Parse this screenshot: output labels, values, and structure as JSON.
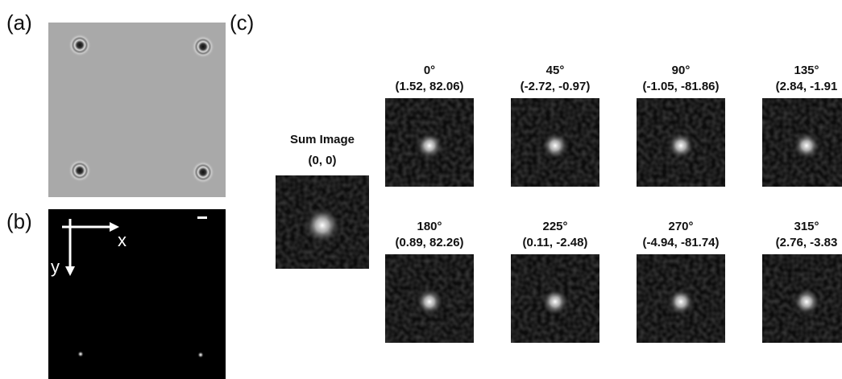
{
  "panels": {
    "a": {
      "label": "(a)"
    },
    "b": {
      "label": "(b)",
      "x_axis": "x",
      "y_axis": "y"
    },
    "c": {
      "label": "(c)",
      "sum": {
        "title": "Sum Image",
        "coords": "(0, 0)"
      },
      "tiles": [
        {
          "angle": "0°",
          "coords": "(1.52, 82.06)"
        },
        {
          "angle": "45°",
          "coords": "(-2.72, -0.97)"
        },
        {
          "angle": "90°",
          "coords": "(-1.05, -81.86)"
        },
        {
          "angle": "135°",
          "coords": "(2.84, -1.91"
        },
        {
          "angle": "180°",
          "coords": "(0.89, 82.26)"
        },
        {
          "angle": "225°",
          "coords": "(0.11, -2.48)"
        },
        {
          "angle": "270°",
          "coords": "(-4.94, -81.74)"
        },
        {
          "angle": "315°",
          "coords": "(2.76, -3.83"
        }
      ]
    }
  }
}
